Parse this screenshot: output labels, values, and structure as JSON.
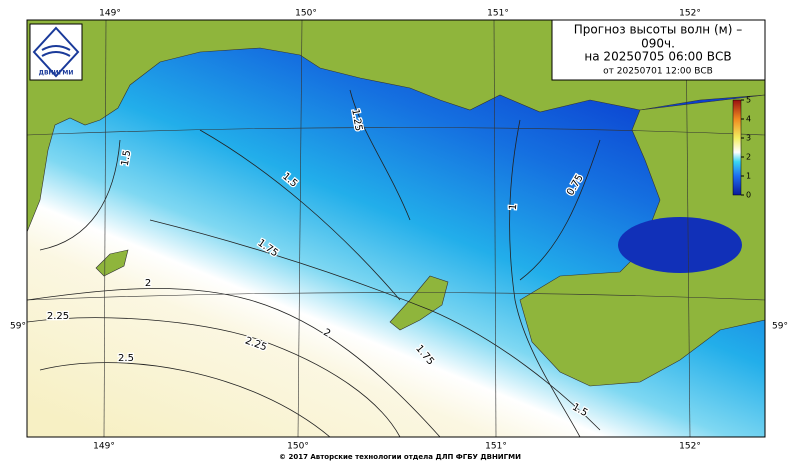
{
  "logo": {
    "text": "ДВНИГМИ"
  },
  "title": {
    "lines": [
      "Прогноз высоты волн (м) –",
      "090ч.",
      "на 20250705 06:00 ВСВ"
    ],
    "issued": "от 20250701 12:00 ВСВ"
  },
  "longitudes": [
    "149°",
    "150°",
    "151°",
    "152°"
  ],
  "latitudes": [
    "59°"
  ],
  "colorbar": {
    "range": [
      0,
      5
    ],
    "ticks": [
      0,
      1,
      2,
      3,
      4,
      5
    ]
  },
  "contours": [
    {
      "label": "1.25"
    },
    {
      "label": "1.5"
    },
    {
      "label": "1.5"
    },
    {
      "label": "1.75"
    },
    {
      "label": "1.75"
    },
    {
      "label": "1"
    },
    {
      "label": "0.75"
    },
    {
      "label": "2"
    },
    {
      "label": "2"
    },
    {
      "label": "2.25"
    },
    {
      "label": "2.25"
    },
    {
      "label": "2.5"
    },
    {
      "label": "1.5"
    }
  ],
  "footer": "© 2017 Авторские технологии отдела ДЛП ФГБУ ДВНИГМИ"
}
